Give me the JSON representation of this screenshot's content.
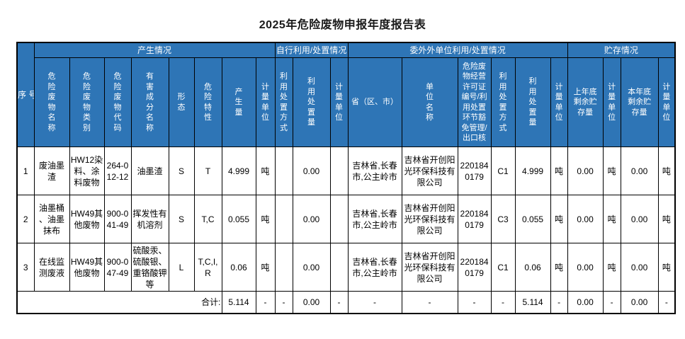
{
  "page": {
    "title": "2025年危险废物申报年度报告表"
  },
  "colors": {
    "header_bg": "#2e75b6",
    "header_text": "#ffffff",
    "border": "#000000",
    "body_bg": "#ffffff",
    "body_text": "#000000"
  },
  "table": {
    "corner_label": "序\n号",
    "groups": [
      {
        "label": "产生情况",
        "span": 8
      },
      {
        "label": "自行利用/处置情况",
        "span": 3
      },
      {
        "label": "委外外单位利用/处置情况",
        "span": 6
      },
      {
        "label": "贮存情况",
        "span": 4
      }
    ],
    "columns": [
      {
        "label": "危\n险\n废\n物\n名\n称"
      },
      {
        "label": "危\n险\n废\n物\n类\n别"
      },
      {
        "label": "危\n险\n废\n物\n代\n码"
      },
      {
        "label": "有\n害\n成\n分\n名\n称"
      },
      {
        "label": "形\n态"
      },
      {
        "label": "危\n险\n特\n性"
      },
      {
        "label": "产\n生\n量"
      },
      {
        "label": "计\n量\n单\n位"
      },
      {
        "label": "利\n用\n处\n置\n方\n式"
      },
      {
        "label": "利\n用\n处\n置\n量"
      },
      {
        "label": "计\n量\n单\n位"
      },
      {
        "label": "省（区、市）"
      },
      {
        "label": "单\n位\n名\n称"
      },
      {
        "label": "危险废\n物经营\n许可证\n编号/利\n用处置\n环节豁\n免管理/\n出口核"
      },
      {
        "label": "利\n用\n处\n置\n方\n式"
      },
      {
        "label": "利\n用\n处\n置\n量"
      },
      {
        "label": "计\n量\n单\n位"
      },
      {
        "label": "上年底\n剩余贮\n存量"
      },
      {
        "label": "计\n量\n单\n位"
      },
      {
        "label": "本年底\n剩余贮\n存量"
      },
      {
        "label": "计\n量\n单\n位"
      }
    ],
    "rows": [
      [
        "1",
        "废油墨渣",
        "HW12染料、涂料废物",
        "264-012-12",
        "油墨渣",
        "S",
        "T",
        "4.999",
        "吨",
        "",
        "0.00",
        "",
        "吉林省,长春市,公主岭市",
        "吉林省开创阳光环保科技有限公司",
        "2201840179",
        "C1",
        "4.999",
        "吨",
        "0.00",
        "吨",
        "0.00",
        "吨"
      ],
      [
        "2",
        "油墨桶、油墨抹布",
        "HW49其他废物",
        "900-041-49",
        "挥发性有机溶剂",
        "S",
        "T,C",
        "0.055",
        "吨",
        "",
        "0.00",
        "",
        "吉林省,长春市,公主岭市",
        "吉林省开创阳光环保科技有限公司",
        "2201840179",
        "C3",
        "0.055",
        "吨",
        "0.00",
        "吨",
        "0.00",
        "吨"
      ],
      [
        "3",
        "在线监测废液",
        "HW49其他废物",
        "900-047-49",
        "硫酸汞、硫酸银、重铬酸钾等",
        "L",
        "T,C,I,R",
        "0.06",
        "吨",
        "",
        "0.00",
        "",
        "吉林省,长春市,公主岭市",
        "吉林省开创阳光环保科技有限公司",
        "2201840179",
        "C1",
        "0.06",
        "吨",
        "0.00",
        "吨",
        "0.00",
        "吨"
      ]
    ],
    "total": {
      "label": "合计:",
      "cells": [
        "5.114",
        "-",
        "-",
        "0.00",
        "-",
        "-",
        "-",
        "-",
        "-",
        "5.114",
        "-",
        "0.00",
        "-",
        "0.00",
        "-"
      ]
    }
  }
}
